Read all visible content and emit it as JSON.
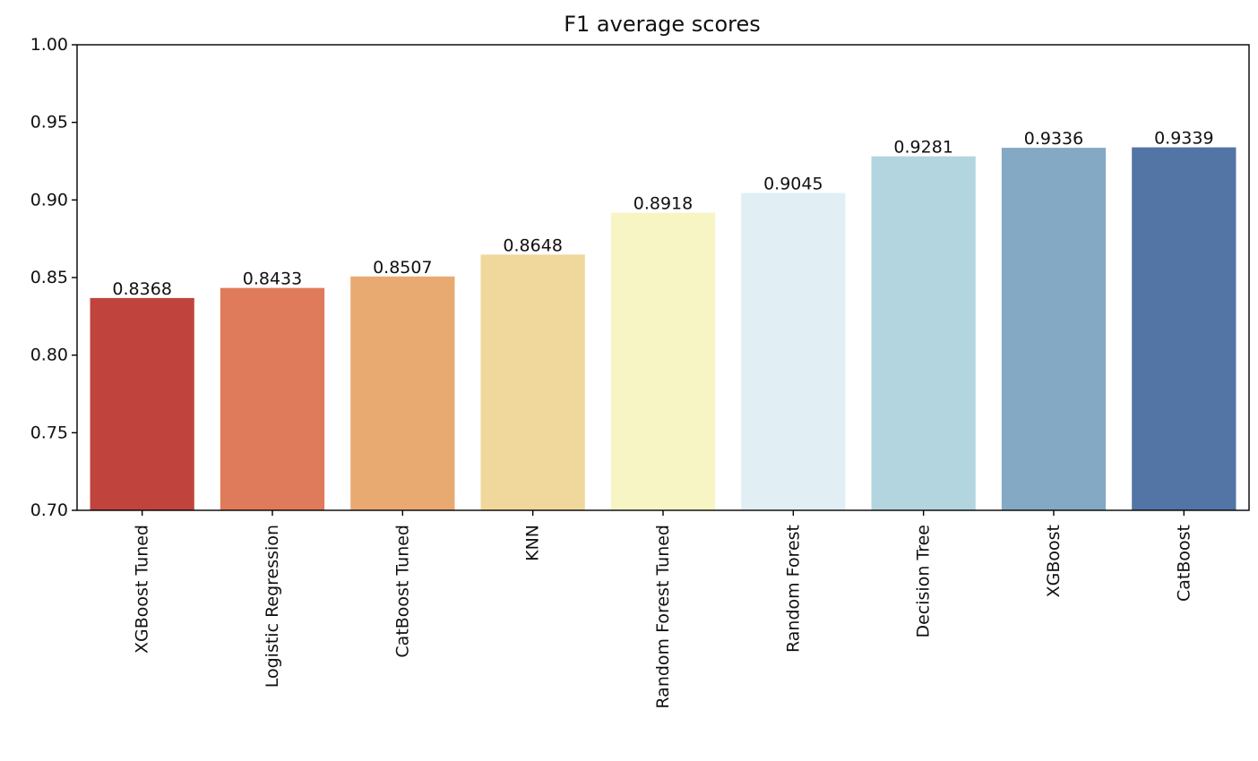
{
  "chart_data": {
    "type": "bar",
    "title": "F1 average scores",
    "xlabel": "",
    "ylabel": "",
    "categories": [
      "XGBoost Tuned",
      "Logistic Regression",
      "CatBoost Tuned",
      "KNN",
      "Random Forest Tuned",
      "Random Forest",
      "Decision Tree",
      "XGBoost",
      "CatBoost"
    ],
    "values": [
      0.8368,
      0.8433,
      0.8507,
      0.8648,
      0.8918,
      0.9045,
      0.9281,
      0.9336,
      0.9339
    ],
    "value_labels": [
      "0.8368",
      "0.8433",
      "0.8507",
      "0.8648",
      "0.8918",
      "0.9045",
      "0.9281",
      "0.9336",
      "0.9339"
    ],
    "colors": [
      "#c0443d",
      "#df7b5a",
      "#e9aa72",
      "#f0d89c",
      "#f7f5c4",
      "#e1eff4",
      "#b3d5df",
      "#83a9c4",
      "#5275a5"
    ],
    "ylim": [
      0.7,
      1.0
    ],
    "yticks": [
      "0.70",
      "0.75",
      "0.80",
      "0.85",
      "0.90",
      "0.95",
      "1.00"
    ],
    "ytick_values": [
      0.7,
      0.75,
      0.8,
      0.85,
      0.9,
      0.95,
      1.0
    ],
    "grid": false,
    "legend": "none"
  }
}
